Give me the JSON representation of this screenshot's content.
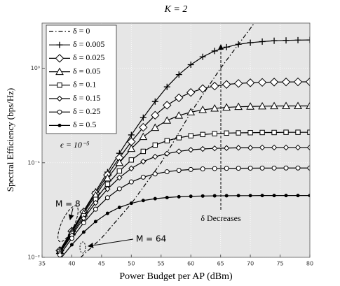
{
  "chart_data": {
    "type": "line",
    "title": "K = 2",
    "x_label": "Power Budget per AP (dBm)",
    "y_label": "Spectral Efficiency (bps/Hz)",
    "y_scale": "log",
    "grid": true,
    "legend": "upper left",
    "xlim": [
      35,
      80
    ],
    "xticks": [
      35,
      40,
      45,
      50,
      55,
      60,
      65,
      70,
      75,
      80
    ],
    "ylim": [
      0.01,
      3
    ],
    "yticks": [
      {
        "value": 0.01,
        "label": "10⁻²"
      },
      {
        "value": 0.1,
        "label": "10⁻¹"
      },
      {
        "value": 1,
        "label": "10⁰"
      }
    ],
    "x": [
      38,
      40,
      42,
      44,
      46,
      48,
      50,
      52,
      54,
      56,
      58,
      60,
      62,
      64,
      66,
      68,
      70,
      72,
      74,
      76,
      78,
      80
    ],
    "series": [
      {
        "name": "δ = 0",
        "color": "#000000",
        "marker": "none",
        "x": [
          41.5,
          45,
          50,
          55,
          60,
          65,
          70.5
        ],
        "values": [
          0.01,
          0.016,
          0.037,
          0.1,
          0.34,
          1.0,
          2.9
        ]
      },
      {
        "name": "δ = 0.005",
        "color": "#000000",
        "marker": "plus",
        "values": [
          0.0119,
          0.0192,
          0.031,
          0.0497,
          0.0797,
          0.126,
          0.197,
          0.3,
          0.444,
          0.635,
          0.857,
          1.09,
          1.32,
          1.52,
          1.67,
          1.79,
          1.86,
          1.91,
          1.95,
          1.97,
          1.98,
          1.99
        ]
      },
      {
        "name": "δ = 0.025",
        "color": "#000000",
        "marker": "diamond",
        "values": [
          0.0118,
          0.0189,
          0.0302,
          0.0476,
          0.0744,
          0.113,
          0.167,
          0.237,
          0.318,
          0.406,
          0.486,
          0.554,
          0.608,
          0.647,
          0.673,
          0.69,
          0.701,
          0.708,
          0.713,
          0.715,
          0.717,
          0.718
        ]
      },
      {
        "name": "δ = 0.05",
        "color": "#000000",
        "marker": "triangle",
        "values": [
          0.0117,
          0.0185,
          0.0292,
          0.0452,
          0.0687,
          0.1,
          0.141,
          0.188,
          0.235,
          0.28,
          0.316,
          0.343,
          0.363,
          0.376,
          0.385,
          0.391,
          0.394,
          0.396,
          0.398,
          0.399,
          0.399,
          0.399
        ]
      },
      {
        "name": "δ = 0.1",
        "color": "#000000",
        "marker": "square",
        "values": [
          0.0114,
          0.0178,
          0.0274,
          0.041,
          0.0595,
          0.0818,
          0.107,
          0.132,
          0.154,
          0.171,
          0.184,
          0.193,
          0.199,
          0.203,
          0.206,
          0.207,
          0.208,
          0.209,
          0.209,
          0.21,
          0.21,
          0.21
        ]
      },
      {
        "name": "δ = 0.15",
        "color": "#000000",
        "marker": "small-diamond",
        "values": [
          0.0111,
          0.0171,
          0.0259,
          0.0377,
          0.0528,
          0.0696,
          0.0871,
          0.103,
          0.116,
          0.125,
          0.132,
          0.137,
          0.14,
          0.142,
          0.143,
          0.144,
          0.144,
          0.145,
          0.145,
          0.145,
          0.145,
          0.145
        ]
      },
      {
        "name": "δ = 0.25",
        "color": "#000000",
        "marker": "circle",
        "values": [
          0.0106,
          0.0159,
          0.0232,
          0.0323,
          0.0427,
          0.0531,
          0.0627,
          0.0704,
          0.0762,
          0.0804,
          0.0831,
          0.0849,
          0.0861,
          0.0868,
          0.0873,
          0.0875,
          0.0877,
          0.0878,
          0.0879,
          0.088,
          0.088,
          0.088
        ]
      },
      {
        "name": "δ = 0.5",
        "color": "#000000",
        "marker": "dot",
        "values": [
          0.0095,
          0.0136,
          0.0185,
          0.0239,
          0.0292,
          0.0337,
          0.0373,
          0.0399,
          0.0417,
          0.0429,
          0.0437,
          0.0442,
          0.0445,
          0.0447,
          0.0448,
          0.0449,
          0.0449,
          0.045,
          0.045,
          0.045,
          0.045,
          0.045
        ]
      }
    ],
    "annotations": {
      "epsilon": "ϵ = 10⁻⁵",
      "m8": "M = 8",
      "m64": "M = 64",
      "delta": "δ Decreases"
    }
  }
}
